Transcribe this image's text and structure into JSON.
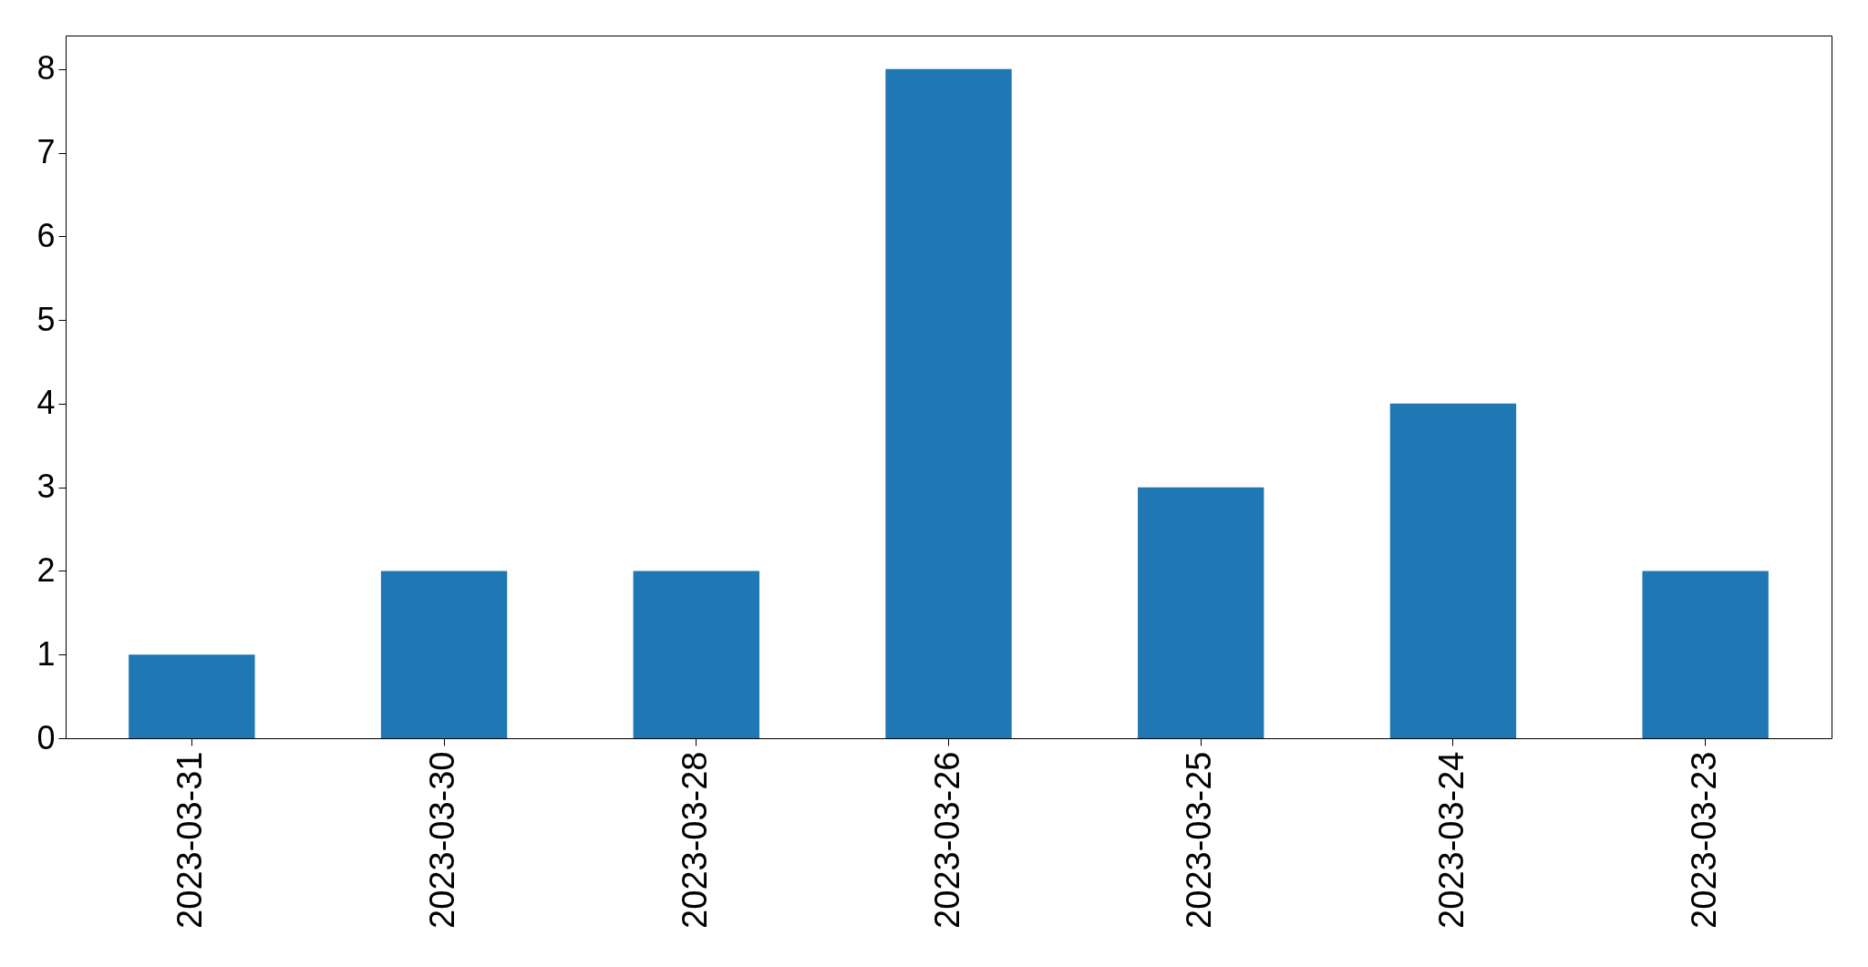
{
  "chart_data": {
    "type": "bar",
    "categories": [
      "2023-03-31",
      "2023-03-30",
      "2023-03-28",
      "2023-03-26",
      "2023-03-25",
      "2023-03-24",
      "2023-03-23"
    ],
    "values": [
      1,
      2,
      2,
      8,
      3,
      4,
      2
    ],
    "color": "#1f77b4",
    "ylim": [
      0,
      8.4
    ],
    "yticks": [
      0,
      1,
      2,
      3,
      4,
      5,
      6,
      7,
      8
    ],
    "grid": false
  }
}
